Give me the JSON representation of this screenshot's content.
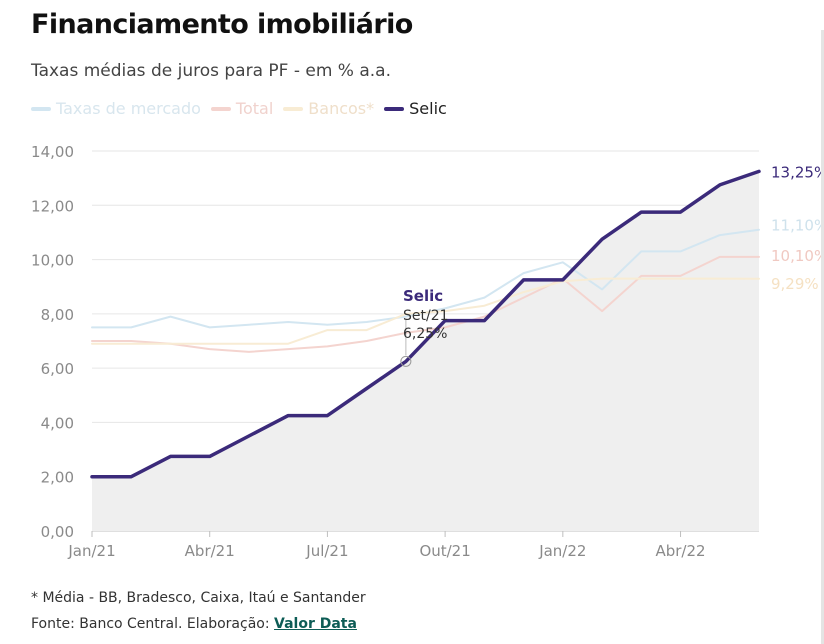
{
  "header": {
    "title": "Financiamento imobiliário",
    "subtitle": "Taxas médias de juros para PF - em % a.a."
  },
  "footer": {
    "footnote": "* Média - BB, Bradesco, Caixa, Itaú e Santander",
    "source_prefix": "Fonte: Banco Central. Elaboração: ",
    "source_link": "Valor Data"
  },
  "colors": {
    "mercado": "#d3e6f1",
    "total": "#f4d4cf",
    "bancos": "#f8ecd4",
    "selic": "#3b2a7a",
    "area": "#efefef",
    "grid": "#e6e6e6",
    "axis_text": "#8a8a8a"
  },
  "chart_data": {
    "type": "line",
    "title": "Financiamento imobiliário",
    "subtitle": "Taxas médias de juros para PF - em % a.a.",
    "x": [
      "2021-01",
      "2021-02",
      "2021-03",
      "2021-04",
      "2021-05",
      "2021-06",
      "2021-07",
      "2021-08",
      "2021-09",
      "2021-10",
      "2021-11",
      "2021-12",
      "2022-01",
      "2022-02",
      "2022-03",
      "2022-04",
      "2022-05",
      "2022-06"
    ],
    "x_tick_labels": [
      "Jan/21",
      "Abr/21",
      "Jul/21",
      "Out/21",
      "Jan/22",
      "Abr/22"
    ],
    "y_tick_labels": [
      "0,00",
      "2,00",
      "4,00",
      "6,00",
      "8,00",
      "10,00",
      "12,00",
      "14,00"
    ],
    "ylim": [
      0,
      14
    ],
    "grid": true,
    "legend_position": "top-left",
    "series": [
      {
        "name": "Taxas de mercado",
        "key": "mercado",
        "values": [
          7.5,
          7.5,
          7.9,
          7.5,
          7.6,
          7.7,
          7.6,
          7.7,
          7.9,
          8.2,
          8.6,
          9.5,
          9.9,
          8.9,
          10.3,
          10.3,
          10.9,
          11.1
        ],
        "end_label": "11,10%"
      },
      {
        "name": "Total",
        "key": "total",
        "values": [
          7.0,
          7.0,
          6.9,
          6.7,
          6.6,
          6.7,
          6.8,
          7.0,
          7.3,
          7.5,
          7.9,
          8.6,
          9.3,
          8.1,
          9.4,
          9.4,
          10.1,
          10.1
        ],
        "end_label": "10,10%"
      },
      {
        "name": "Bancos*",
        "key": "bancos",
        "values": [
          6.9,
          6.9,
          6.9,
          6.9,
          6.9,
          6.9,
          7.4,
          7.4,
          8.0,
          8.1,
          8.3,
          8.8,
          9.2,
          9.3,
          9.3,
          9.3,
          9.3,
          9.29
        ],
        "end_label": "9,29%"
      },
      {
        "name": "Selic",
        "key": "selic",
        "values": [
          2.0,
          2.0,
          2.75,
          2.75,
          3.5,
          4.25,
          4.25,
          5.25,
          6.25,
          7.75,
          7.75,
          9.25,
          9.25,
          10.75,
          11.75,
          11.75,
          12.75,
          13.25
        ],
        "end_label": "13,25%"
      }
    ],
    "annotation": {
      "series": "Selic",
      "index": 8,
      "title": "Selic",
      "date": "Set/21",
      "value": "6,25%"
    }
  }
}
